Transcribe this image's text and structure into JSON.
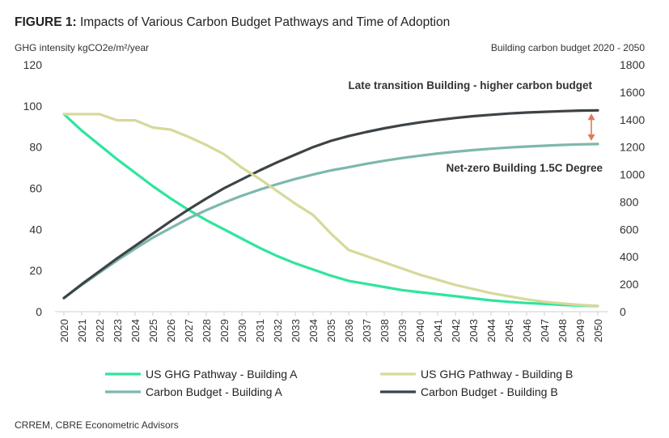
{
  "chart_data": {
    "type": "line",
    "title_prefix": "FIGURE 1:",
    "title_rest": " Impacts of Various Carbon Budget Pathways and Time of Adoption",
    "ylabel_left": "GHG intensity kgCO2e/m²/year",
    "ylabel_right": "Building carbon budget 2020 - 2050",
    "ylim_left": [
      0,
      120
    ],
    "ylim_right": [
      0,
      1800
    ],
    "yticks_left": [
      "0",
      "20",
      "40",
      "60",
      "80",
      "100",
      "120"
    ],
    "yticks_right": [
      "0",
      "200",
      "400",
      "600",
      "800",
      "1000",
      "1200",
      "1400",
      "1600",
      "1800"
    ],
    "x": [
      "2020",
      "2021",
      "2022",
      "2023",
      "2024",
      "2025",
      "2026",
      "2027",
      "2028",
      "2029",
      "2030",
      "2031",
      "2032",
      "2033",
      "2034",
      "2035",
      "2036",
      "2037",
      "2038",
      "2039",
      "2040",
      "2041",
      "2042",
      "2043",
      "2044",
      "2045",
      "2046",
      "2047",
      "2048",
      "2049",
      "2050"
    ],
    "series": [
      {
        "name": "US GHG Pathway - Building A",
        "axis": "left",
        "color": "#2EE59D",
        "values": [
          96,
          88,
          81,
          74,
          67.5,
          61,
          55,
          49.5,
          44.5,
          40,
          35.5,
          31,
          27,
          23.5,
          20.5,
          17.5,
          15,
          13.5,
          12,
          10.5,
          9.5,
          8.5,
          7.5,
          6.5,
          5.5,
          4.8,
          4.2,
          3.8,
          3.3,
          3.0,
          2.7
        ]
      },
      {
        "name": "US GHG Pathway - Building B",
        "axis": "left",
        "color": "#D6D99A",
        "values": [
          96,
          96,
          96,
          93,
          93,
          89.5,
          88.5,
          85,
          81,
          76.5,
          70,
          64.5,
          58.5,
          52.5,
          47,
          38,
          30,
          27,
          24,
          21,
          18,
          15.5,
          13,
          11,
          9,
          7.5,
          6,
          4.8,
          4,
          3.3,
          2.8
        ]
      },
      {
        "name": "Carbon Budget - Building A",
        "axis": "right",
        "color": "#7DB8AC",
        "values": [
          100,
          195,
          285,
          375,
          460,
          540,
          610,
          680,
          740,
          795,
          845,
          890,
          930,
          967,
          1000,
          1030,
          1053,
          1078,
          1100,
          1120,
          1137,
          1153,
          1166,
          1178,
          1188,
          1197,
          1204,
          1210,
          1216,
          1220,
          1222
        ]
      },
      {
        "name": "Carbon Budget - Building B",
        "axis": "right",
        "color": "#3D4347",
        "values": [
          100,
          200,
          295,
          390,
          480,
          570,
          660,
          745,
          825,
          900,
          965,
          1030,
          1090,
          1145,
          1200,
          1245,
          1280,
          1310,
          1337,
          1360,
          1380,
          1397,
          1412,
          1425,
          1435,
          1445,
          1452,
          1457,
          1462,
          1466,
          1468
        ]
      }
    ],
    "annotations": {
      "late": "Late transition Building - higher carbon budget",
      "netzero": "Net-zero Building 1.5C Degree",
      "arrow_color": "#E07A55"
    },
    "legend": [
      {
        "label": "US GHG Pathway - Building A",
        "color": "#2EE59D"
      },
      {
        "label": "US GHG Pathway - Building B",
        "color": "#D6D99A"
      },
      {
        "label": "Carbon Budget - Building A",
        "color": "#7DB8AC"
      },
      {
        "label": "Carbon Budget - Building B",
        "color": "#3D4347"
      }
    ],
    "source": "CRREM, CBRE Econometric Advisors"
  }
}
